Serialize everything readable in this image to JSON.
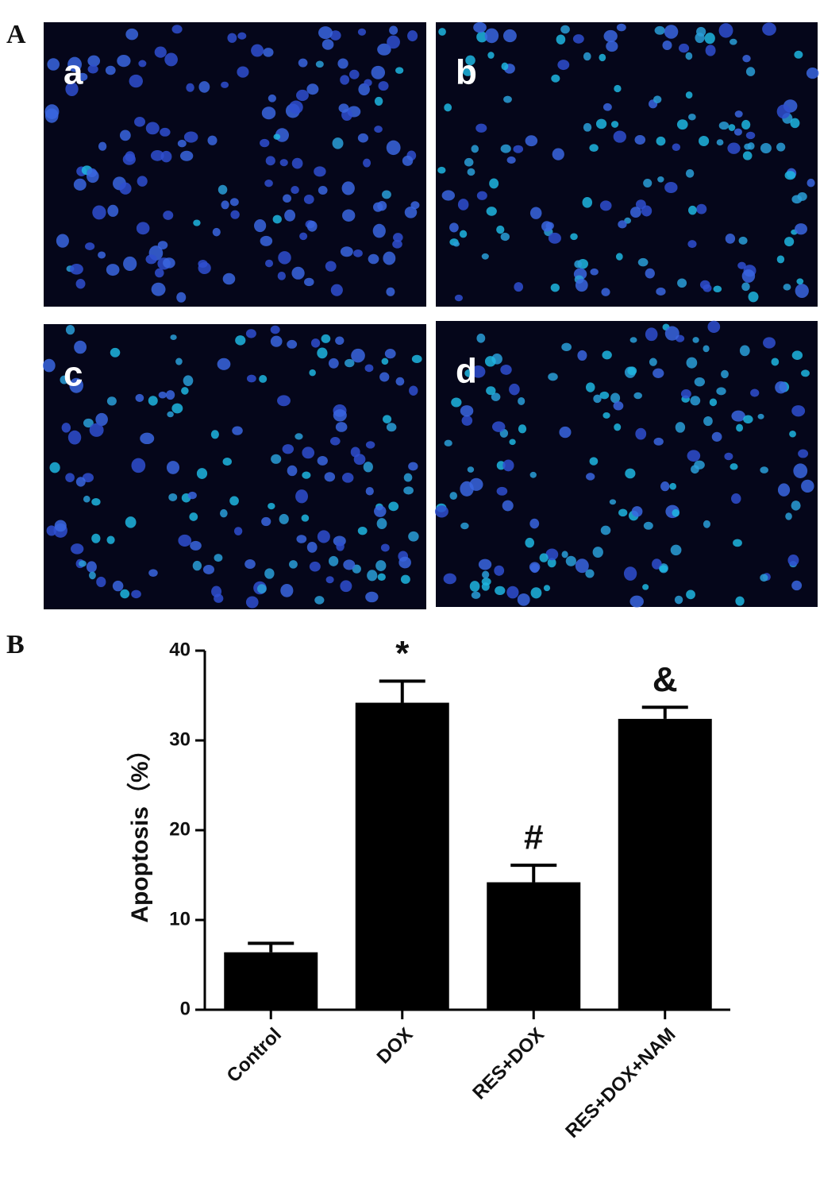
{
  "figure_labels": {
    "A": "A",
    "B": "B"
  },
  "micrographs": [
    {
      "label": "a"
    },
    {
      "label": "b"
    },
    {
      "label": "c"
    },
    {
      "label": "d"
    }
  ],
  "chart_data": {
    "type": "bar",
    "ylabel": "Apoptosis（%）",
    "categories": [
      "Control",
      "DOX",
      "RES+DOX",
      "RES+DOX+NAM"
    ],
    "series": [
      {
        "color": "#000000",
        "values": [
          6.4,
          34.2,
          14.2,
          32.4
        ],
        "errors": [
          1.0,
          2.4,
          1.9,
          1.3
        ]
      }
    ],
    "annotations": [
      null,
      "*",
      "#",
      "&"
    ],
    "ylim": [
      0,
      40
    ],
    "yticks": [
      0,
      10,
      20,
      30,
      40
    ],
    "grid": false
  }
}
